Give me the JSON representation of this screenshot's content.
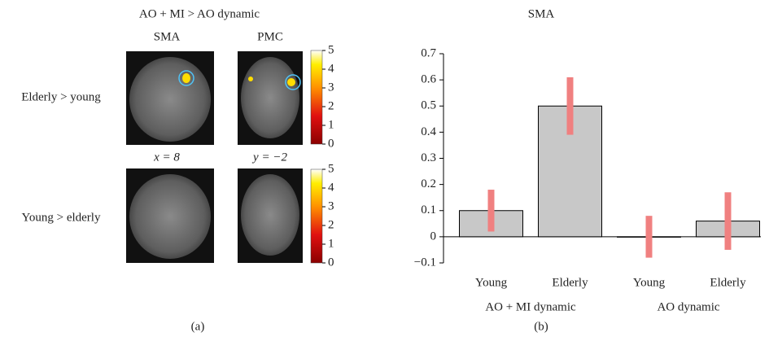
{
  "panel_a": {
    "title": "AO + MI > AO dynamic",
    "columns": [
      "SMA",
      "PMC"
    ],
    "rows": [
      "Elderly > young",
      "Young > elderly"
    ],
    "coordinates": [
      "x = 8",
      "y = −2"
    ],
    "colorbars": [
      {
        "lim": [
          0,
          5
        ],
        "ticks": [
          0,
          1,
          2,
          3,
          4,
          5
        ]
      },
      {
        "lim": [
          0,
          5
        ],
        "ticks": [
          0,
          1,
          2,
          3,
          4,
          5
        ]
      }
    ],
    "label": "(a)"
  },
  "chart_data": {
    "type": "bar",
    "title": "SMA",
    "categories": [
      "Young",
      "Elderly",
      "Young",
      "Elderly"
    ],
    "groups": [
      "AO + MI dynamic",
      "AO dynamic"
    ],
    "values": [
      0.1,
      0.5,
      0,
      0.06
    ],
    "errors": [
      0.08,
      0.11,
      0.08,
      0.11
    ],
    "color": "#c8c8c8",
    "error_color": "#f08080",
    "ylim": [
      -0.1,
      0.7
    ],
    "yticks": [
      0.7,
      0.6,
      0.5,
      0.4,
      0.3,
      0.2,
      0.1,
      0,
      {
        "value": -0.1,
        "label": "−0.1"
      }
    ],
    "grid": false,
    "label": "(b)"
  }
}
